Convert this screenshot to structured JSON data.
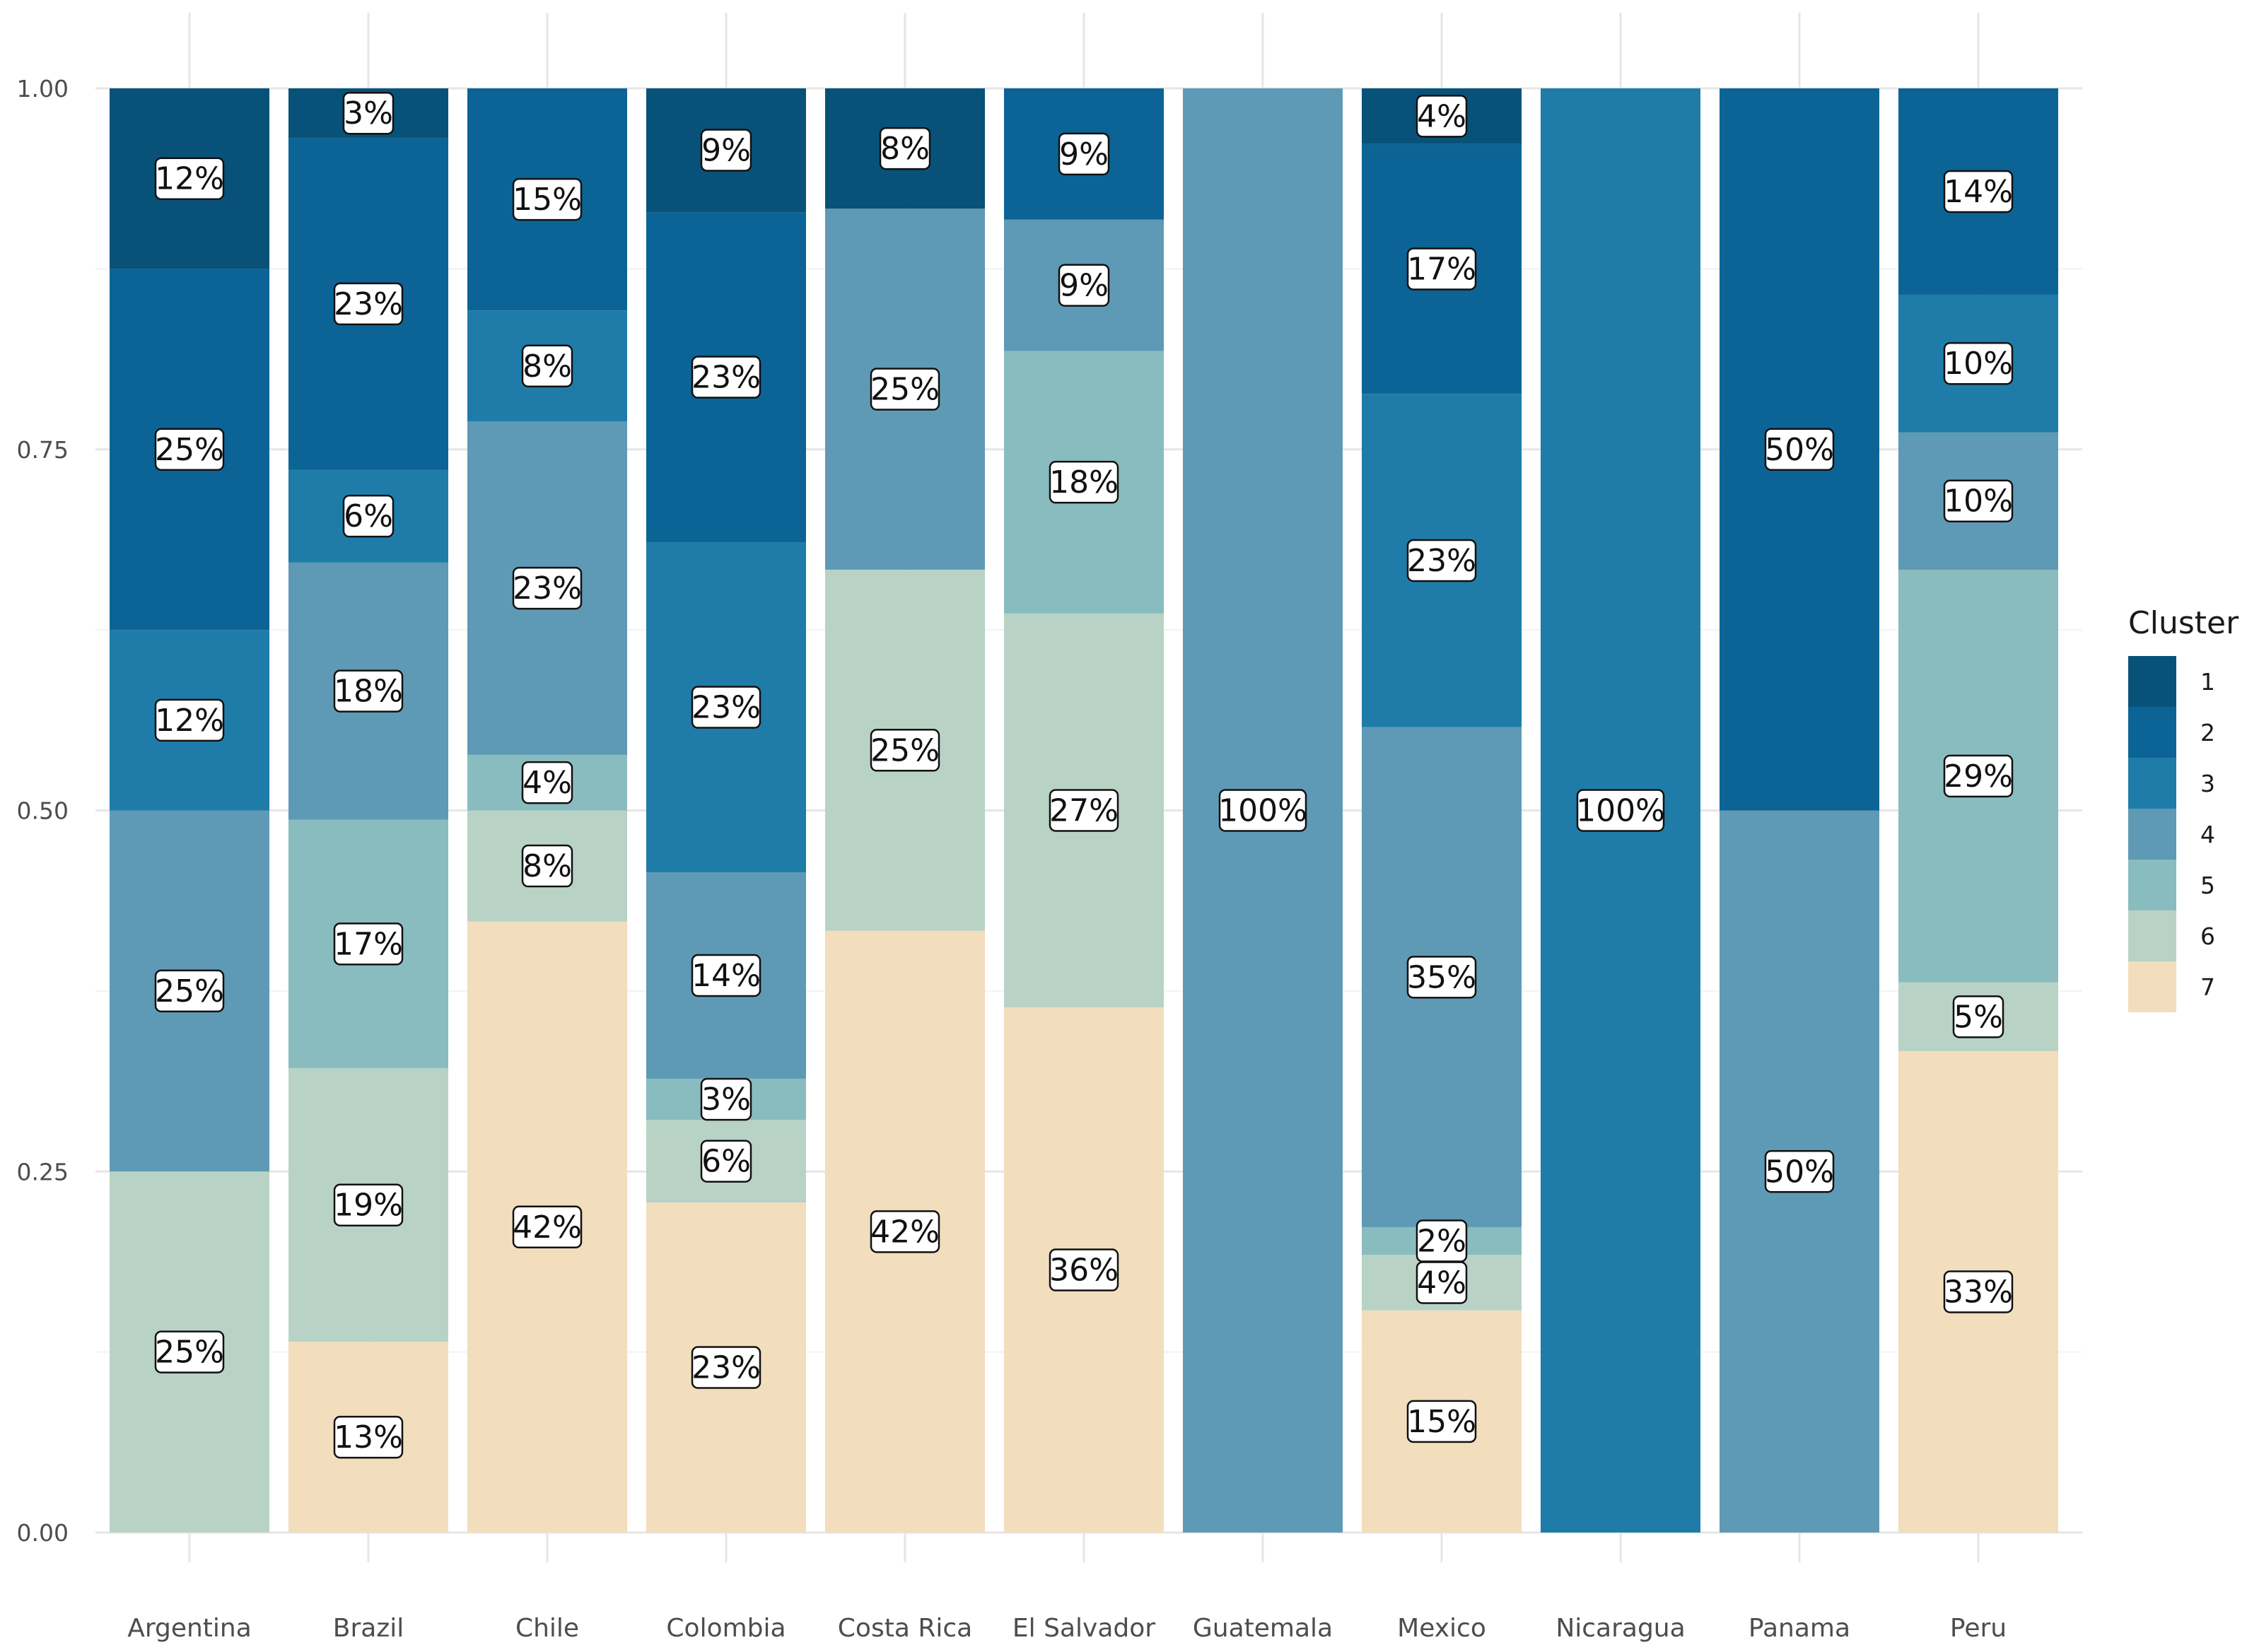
{
  "chart_data": {
    "type": "bar",
    "stacked": true,
    "title": "",
    "xlabel": "",
    "ylabel": "",
    "ylim": [
      0,
      1
    ],
    "yticks": [
      "0.00",
      "0.25",
      "0.50",
      "0.75",
      "1.00"
    ],
    "grid": true,
    "legend": {
      "title": "Cluster",
      "position": "right",
      "entries": [
        "1",
        "2",
        "3",
        "4",
        "5",
        "6",
        "7"
      ]
    },
    "colors": [
      "#08527a",
      "#0c6496",
      "#1f7ca8",
      "#5e9ab5",
      "#89bcbf",
      "#b8d3c5",
      "#f2ddbd"
    ],
    "categories": [
      "Argentina",
      "Brazil",
      "Chile",
      "Colombia",
      "Costa Rica",
      "El Salvador",
      "Guatemala",
      "Mexico",
      "Nicaragua",
      "Panama",
      "Peru"
    ],
    "series": [
      {
        "name": "1",
        "values": [
          0.125,
          0.0345,
          0,
          0.0857,
          0.0833,
          0,
          0,
          0.0385,
          0,
          0,
          0
        ]
      },
      {
        "name": "2",
        "values": [
          0.25,
          0.2299,
          0.1538,
          0.2286,
          0,
          0.0909,
          0,
          0.1731,
          0,
          0.5,
          0.1429
        ]
      },
      {
        "name": "3",
        "values": [
          0.125,
          0.0644,
          0.0769,
          0.2286,
          0,
          0,
          0,
          0.2308,
          1.0,
          0,
          0.0952
        ]
      },
      {
        "name": "4",
        "values": [
          0.25,
          0.1782,
          0.2308,
          0.1429,
          0.25,
          0.0909,
          1.0,
          0.3462,
          0,
          0.5,
          0.0952
        ]
      },
      {
        "name": "5",
        "values": [
          0,
          0.1724,
          0.0385,
          0.0286,
          0,
          0.1818,
          0,
          0.0192,
          0,
          0,
          0.2857
        ]
      },
      {
        "name": "6",
        "values": [
          0.25,
          0.1897,
          0.0769,
          0.0571,
          0.25,
          0.2727,
          0,
          0.0385,
          0,
          0,
          0.0476
        ]
      },
      {
        "name": "7",
        "values": [
          0,
          0.1322,
          0.4231,
          0.2286,
          0.4167,
          0.3636,
          0,
          0.1538,
          0,
          0,
          0.3333
        ]
      }
    ],
    "labels": [
      [
        "12%",
        "25%",
        "12%",
        "25%",
        "",
        "25%",
        ""
      ],
      [
        "3%",
        "23%",
        "6%",
        "18%",
        "17%",
        "19%",
        "13%"
      ],
      [
        "",
        "15%",
        "8%",
        "23%",
        "4%",
        "8%",
        "42%"
      ],
      [
        "9%",
        "23%",
        "23%",
        "14%",
        "3%",
        "6%",
        "23%"
      ],
      [
        "8%",
        "",
        "",
        "25%",
        "",
        "25%",
        "42%"
      ],
      [
        "",
        "9%",
        "",
        "9%",
        "18%",
        "27%",
        "36%"
      ],
      [
        "",
        "",
        "",
        "100%",
        "",
        "",
        ""
      ],
      [
        "4%",
        "17%",
        "23%",
        "35%",
        "2%",
        "4%",
        "15%"
      ],
      [
        "",
        "",
        "100%",
        "",
        "",
        "",
        ""
      ],
      [
        "",
        "50%",
        "",
        "50%",
        "",
        "",
        ""
      ],
      [
        "",
        "14%",
        "10%",
        "10%",
        "29%",
        "5%",
        "33%"
      ]
    ]
  }
}
